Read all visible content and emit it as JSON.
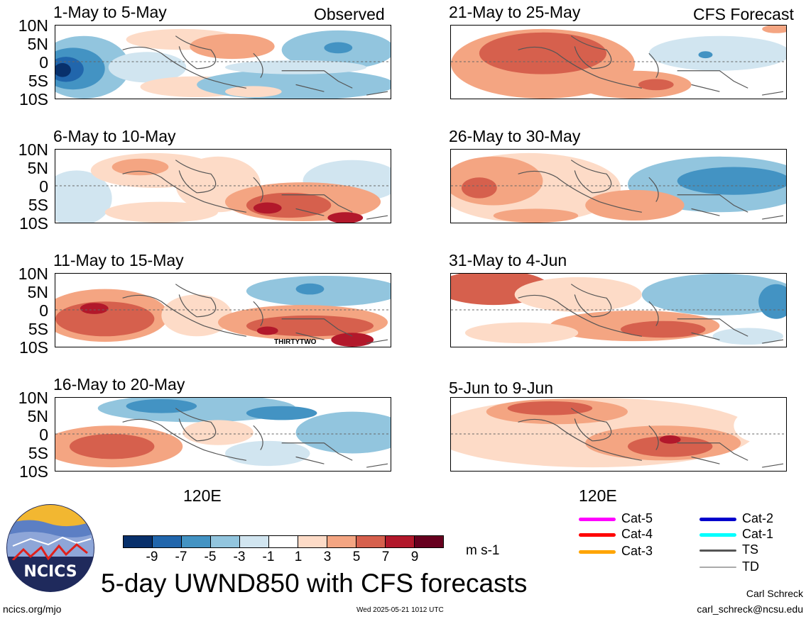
{
  "panels": [
    {
      "title": "1-May to 5-May",
      "tag": "Observed"
    },
    {
      "title": "21-May to 25-May",
      "tag": "CFS Forecast"
    },
    {
      "title": "6-May to 10-May",
      "tag": ""
    },
    {
      "title": "26-May to 30-May",
      "tag": ""
    },
    {
      "title": "11-May to 15-May",
      "tag": "",
      "storm_label": "THIRTYTWO"
    },
    {
      "title": "31-May to 4-Jun",
      "tag": ""
    },
    {
      "title": "16-May to 20-May",
      "tag": ""
    },
    {
      "title": "5-Jun to 9-Jun",
      "tag": ""
    }
  ],
  "lat_labels": [
    "10N",
    "5N",
    "0",
    "5S",
    "10S"
  ],
  "lon_label": "120E",
  "colorbar": {
    "ticks": [
      "-9",
      "-7",
      "-5",
      "-3",
      "-1",
      "1",
      "3",
      "5",
      "7",
      "9"
    ],
    "units": "m s-1",
    "colors": [
      "#08306b",
      "#2166ac",
      "#4393c3",
      "#92c5de",
      "#d1e5f0",
      "#ffffff",
      "#fddbc7",
      "#f4a582",
      "#d6604d",
      "#b2182b",
      "#67001f"
    ]
  },
  "legend": [
    {
      "label": "Cat-5",
      "color": "#ff00ff"
    },
    {
      "label": "Cat-2",
      "color": "#0000cc"
    },
    {
      "label": "Cat-4",
      "color": "#ff0000"
    },
    {
      "label": "Cat-1",
      "color": "#00ffff"
    },
    {
      "label": "Cat-3",
      "color": "#ffa500"
    },
    {
      "label": "TS",
      "color": "#555555"
    },
    {
      "label": "TD",
      "color": "#aaaaaa"
    }
  ],
  "main_title": "5-day UWND850 with CFS forecasts",
  "logo_text": "NCICS",
  "footer": {
    "url": "ncics.org/mjo",
    "timestamp": "Wed 2025-05-21 1012 UTC",
    "author": "Carl Schreck",
    "email": "carl_schreck@ncsu.edu"
  }
}
